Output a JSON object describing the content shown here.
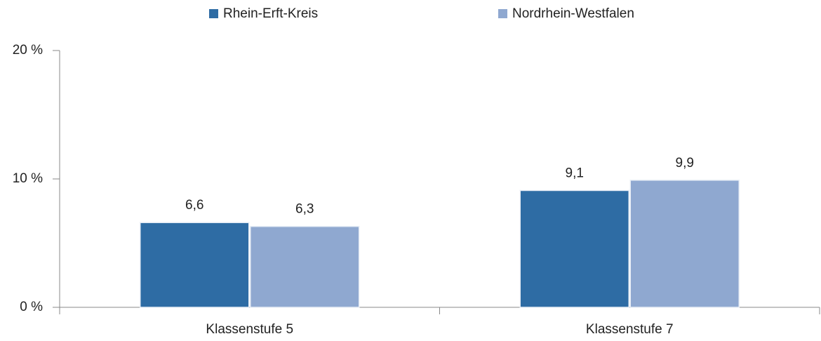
{
  "chart_data": {
    "type": "bar",
    "categories": [
      "Klassenstufe 5",
      "Klassenstufe 7"
    ],
    "series": [
      {
        "name": "Rhein-Erft-Kreis",
        "color": "#2e6ca4",
        "values": [
          6.6,
          9.1
        ],
        "value_labels": [
          "6,6",
          "9,1"
        ]
      },
      {
        "name": "Nordrhein-Westfalen",
        "color": "#8fa8d0",
        "values": [
          6.3,
          9.9
        ],
        "value_labels": [
          "6,3",
          "9,9"
        ]
      }
    ],
    "ylim": [
      0,
      20
    ],
    "yticks": [
      {
        "value": 0,
        "label": "0 %"
      },
      {
        "value": 10,
        "label": "10 %"
      },
      {
        "value": 20,
        "label": "20 %"
      }
    ],
    "legend": "top"
  }
}
